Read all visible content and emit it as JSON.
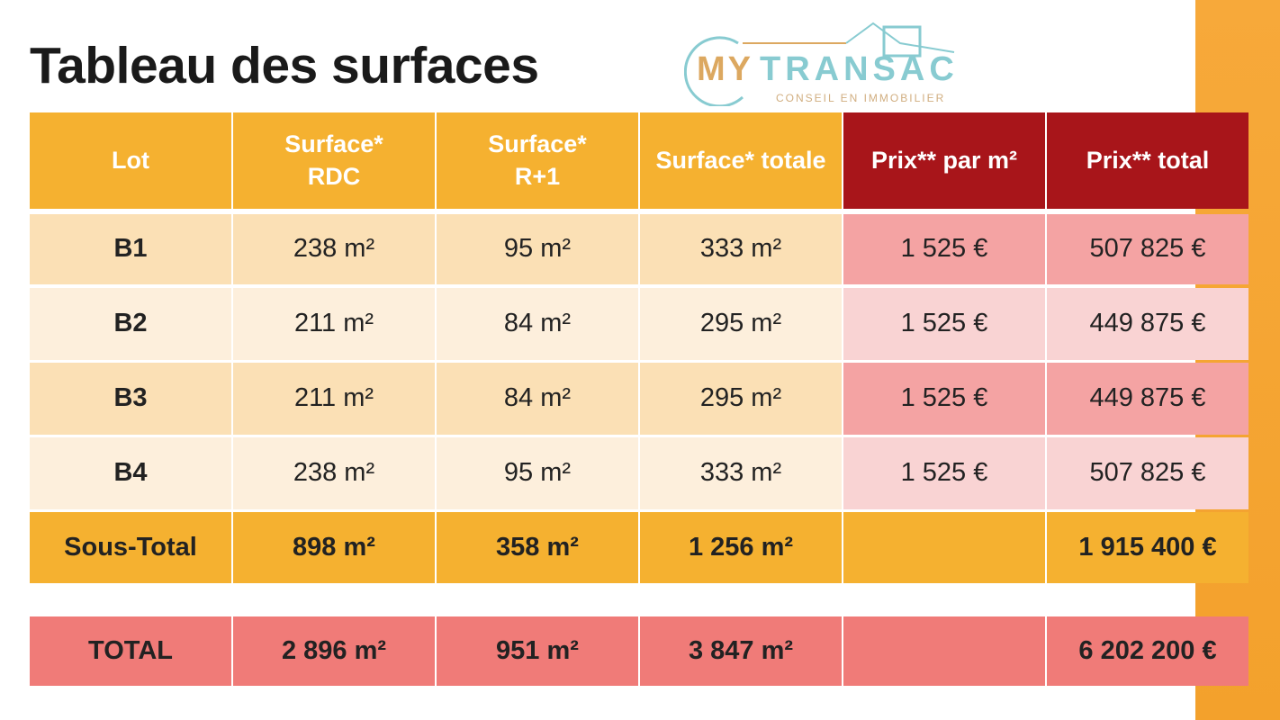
{
  "title": "Tableau des surfaces",
  "colors": {
    "header_orange": "#F5B130",
    "header_red": "#A8151A",
    "total_red": "#F07B78"
  },
  "headers": [
    "Lot",
    "Surface* RDC",
    "Surface* R+1",
    "Surface* totale",
    "Prix** par m²",
    "Prix** total"
  ],
  "header_lines": {
    "rdc1": "Surface*",
    "rdc2": "RDC",
    "r1a": "Surface*",
    "r1b": "R+1"
  },
  "rows": [
    [
      "B1",
      "238 m²",
      "95 m²",
      "333 m²",
      "1 525 €",
      "507 825 €"
    ],
    [
      "B2",
      "211 m²",
      "84 m²",
      "295 m²",
      "1 525 €",
      "449 875 €"
    ],
    [
      "B3",
      "211 m²",
      "84 m²",
      "295 m²",
      "1 525 €",
      "449 875 €"
    ],
    [
      "B4",
      "238 m²",
      "95 m²",
      "333 m²",
      "1 525 €",
      "507 825 €"
    ]
  ],
  "subtotal": [
    "Sous-Total",
    "898 m²",
    "358 m²",
    "1 256 m²",
    "",
    "1 915 400 €"
  ],
  "total": [
    "TOTAL",
    "2 896 m²",
    "951 m²",
    "3 847 m²",
    "",
    "6 202 200 €"
  ],
  "watermark": {
    "brand_a": "MY",
    "brand_b": "TRANSAC",
    "tagline": "CONSEIL EN IMMOBILIER"
  }
}
